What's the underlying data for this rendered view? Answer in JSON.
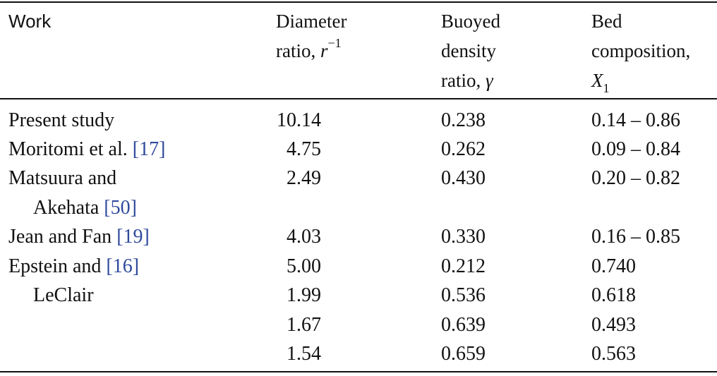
{
  "headers": {
    "work": "Work",
    "diameter_line1": "Diameter",
    "diameter_line2": "ratio,",
    "diameter_sym": "r",
    "diameter_exp": "−1",
    "buoyed_line1": "Buoyed",
    "buoyed_line2": "density",
    "buoyed_line3": "ratio,",
    "buoyed_sym": "γ",
    "bed_line1": "Bed",
    "bed_line2": "composition,",
    "bed_sym": "X",
    "bed_sub": "1"
  },
  "rows": [
    {
      "work": "Present study",
      "ref": "",
      "work2": "",
      "ref2": "",
      "diameter": "10.14",
      "buoyed": "0.238",
      "bed": "0.14 – 0.86"
    },
    {
      "work": "Moritomi et al.",
      "ref": "[17]",
      "work2": "",
      "ref2": "",
      "diameter": "4.75",
      "buoyed": "0.262",
      "bed": "0.09 – 0.84"
    },
    {
      "work": "Matsuura and",
      "ref": "",
      "work2": "Akehata",
      "ref2": "[50]",
      "diameter": "2.49",
      "buoyed": "0.430",
      "bed": "0.20 – 0.82"
    },
    {
      "work": "Jean and Fan",
      "ref": "[19]",
      "work2": "",
      "ref2": "",
      "diameter": "4.03",
      "buoyed": "0.330",
      "bed": "0.16 – 0.85"
    },
    {
      "work": "Epstein and",
      "ref": "[16]",
      "work2": "LeClair",
      "ref2": "",
      "diameter": "5.00",
      "buoyed": "0.212",
      "bed": "0.740"
    },
    {
      "work": "",
      "ref": "",
      "work2": "",
      "ref2": "",
      "diameter": "1.99",
      "buoyed": "0.536",
      "bed": "0.618"
    },
    {
      "work": "",
      "ref": "",
      "work2": "",
      "ref2": "",
      "diameter": "1.67",
      "buoyed": "0.639",
      "bed": "0.493"
    },
    {
      "work": "",
      "ref": "",
      "work2": "",
      "ref2": "",
      "diameter": "1.54",
      "buoyed": "0.659",
      "bed": "0.563"
    }
  ]
}
